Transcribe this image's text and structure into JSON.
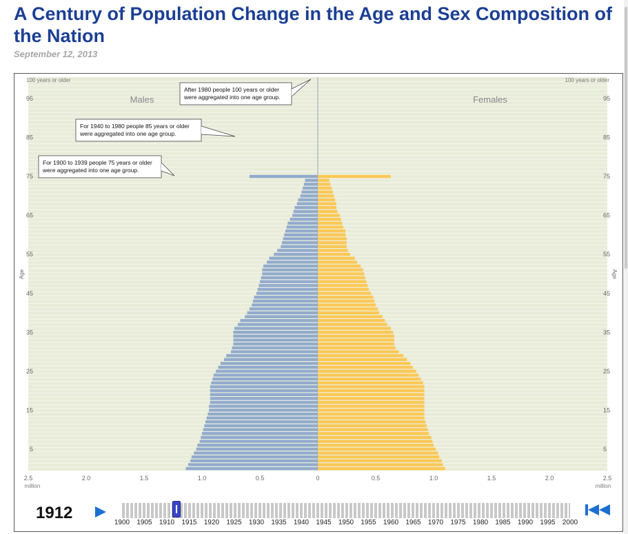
{
  "page": {
    "title": "A Century of Population Change in the Age and Sex Composition of the Nation",
    "date": "September 12, 2013"
  },
  "colors": {
    "male": "#92abcc",
    "female": "#fbc857",
    "plot_bg": "#e8ecd9",
    "accent": "#1c6fd1",
    "title": "#1c3f94"
  },
  "controls": {
    "year": "1912",
    "play_icon": "play-icon",
    "rewind_icon": "rewind-to-start-icon",
    "slider_value": 1912,
    "slider_range": [
      1900,
      2000
    ],
    "slider_labels": [
      "1900",
      "1905",
      "1910",
      "1915",
      "1920",
      "1925",
      "1930",
      "1935",
      "1940",
      "1945",
      "1950",
      "1955",
      "1960",
      "1965",
      "1970",
      "1975",
      "1980",
      "1985",
      "1990",
      "1995",
      "2000"
    ]
  },
  "chart_data": {
    "type": "bar",
    "orientation": "horizontal",
    "labels": {
      "males": "Males",
      "females": "Females",
      "y_axis": "Age",
      "x_unit": "million",
      "top_age": "100 years or older"
    },
    "x_ticks": [
      "2.5",
      "2.0",
      "1.5",
      "1.0",
      "0.5",
      "0",
      "0.5",
      "1.0",
      "1.5",
      "2.0",
      "2.5"
    ],
    "y_ticks": [
      "5",
      "15",
      "25",
      "35",
      "45",
      "55",
      "65",
      "75",
      "85",
      "95"
    ],
    "xlim": [
      -2.5,
      2.5
    ],
    "ylim": [
      0,
      101
    ],
    "grid": true,
    "annotations": [
      {
        "lines": [
          "After 1980 people 100 years or older",
          "were aggregated into one age group."
        ]
      },
      {
        "lines": [
          "For 1940 to 1980 people 85 years or older",
          "were aggregated into one age group."
        ]
      },
      {
        "lines": [
          "For 1900 to 1939 people 75 years or older",
          "were aggregated into one age group."
        ]
      }
    ],
    "ages": [
      0,
      1,
      2,
      3,
      4,
      5,
      6,
      7,
      8,
      9,
      10,
      11,
      12,
      13,
      14,
      15,
      16,
      17,
      18,
      19,
      20,
      21,
      22,
      23,
      24,
      25,
      26,
      27,
      28,
      29,
      30,
      31,
      32,
      33,
      34,
      35,
      36,
      37,
      38,
      39,
      40,
      41,
      42,
      43,
      44,
      45,
      46,
      47,
      48,
      49,
      50,
      51,
      52,
      53,
      54,
      55,
      56,
      57,
      58,
      59,
      60,
      61,
      62,
      63,
      64,
      65,
      66,
      67,
      68,
      69,
      70,
      71,
      72,
      73,
      74,
      75
    ],
    "series": [
      {
        "name": "Males",
        "values": [
          1.14,
          1.12,
          1.1,
          1.09,
          1.07,
          1.05,
          1.04,
          1.02,
          1.01,
          1.0,
          0.99,
          0.98,
          0.97,
          0.96,
          0.95,
          0.94,
          0.94,
          0.93,
          0.93,
          0.93,
          0.93,
          0.93,
          0.92,
          0.91,
          0.9,
          0.88,
          0.86,
          0.84,
          0.81,
          0.79,
          0.75,
          0.74,
          0.73,
          0.73,
          0.73,
          0.73,
          0.72,
          0.69,
          0.67,
          0.63,
          0.61,
          0.59,
          0.57,
          0.56,
          0.55,
          0.53,
          0.52,
          0.51,
          0.5,
          0.49,
          0.48,
          0.48,
          0.47,
          0.44,
          0.42,
          0.38,
          0.35,
          0.32,
          0.31,
          0.3,
          0.29,
          0.28,
          0.27,
          0.26,
          0.24,
          0.22,
          0.21,
          0.2,
          0.18,
          0.17,
          0.15,
          0.14,
          0.13,
          0.12,
          0.11,
          0.59
        ]
      },
      {
        "name": "Females",
        "values": [
          1.1,
          1.08,
          1.07,
          1.05,
          1.04,
          1.02,
          1.0,
          0.99,
          0.98,
          0.96,
          0.95,
          0.94,
          0.93,
          0.92,
          0.92,
          0.92,
          0.92,
          0.92,
          0.92,
          0.92,
          0.92,
          0.92,
          0.91,
          0.89,
          0.87,
          0.85,
          0.82,
          0.8,
          0.77,
          0.74,
          0.7,
          0.67,
          0.66,
          0.66,
          0.66,
          0.65,
          0.63,
          0.6,
          0.58,
          0.56,
          0.53,
          0.52,
          0.5,
          0.49,
          0.48,
          0.46,
          0.44,
          0.43,
          0.42,
          0.41,
          0.4,
          0.39,
          0.37,
          0.34,
          0.32,
          0.28,
          0.26,
          0.25,
          0.25,
          0.25,
          0.24,
          0.24,
          0.22,
          0.21,
          0.2,
          0.19,
          0.17,
          0.16,
          0.16,
          0.15,
          0.14,
          0.13,
          0.12,
          0.11,
          0.1,
          0.63
        ]
      }
    ]
  }
}
